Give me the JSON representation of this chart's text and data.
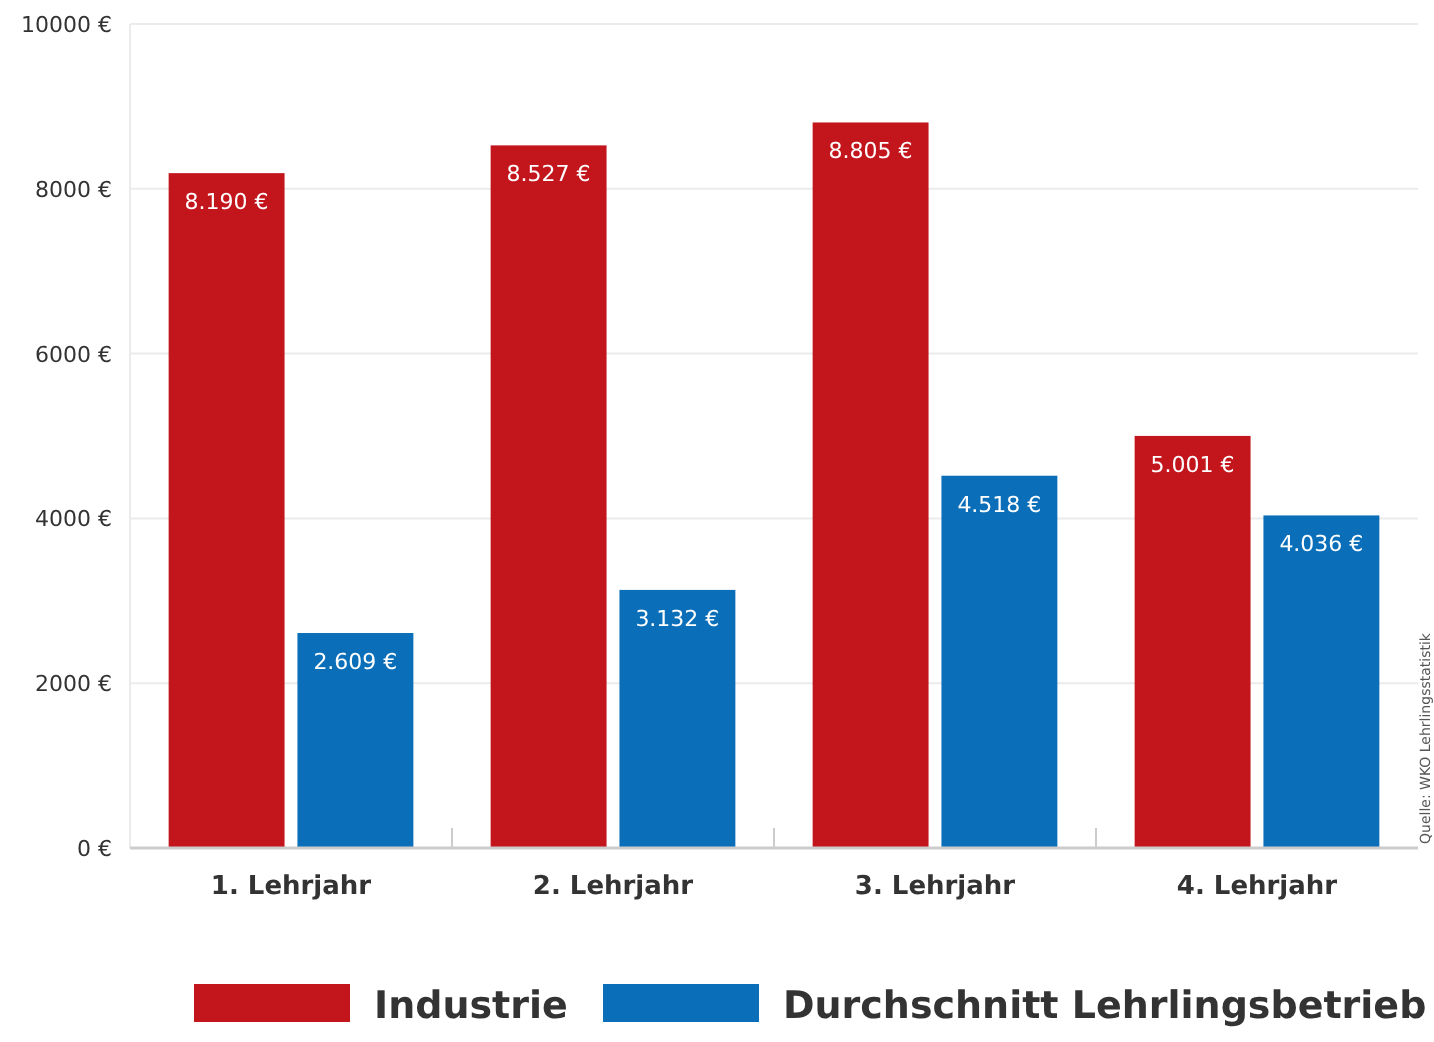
{
  "chart_data": {
    "type": "bar",
    "categories": [
      "1. Lehrjahr",
      "2. Lehrjahr",
      "3. Lehrjahr",
      "4. Lehrjahr"
    ],
    "series": [
      {
        "name": "Industrie",
        "color": "#c3151c",
        "values": [
          8190,
          8527,
          8805,
          5001
        ],
        "value_labels": [
          "8.190 €",
          "8.527 €",
          "8.805 €",
          "5.001 €"
        ]
      },
      {
        "name": "Durchschnitt Lehrlingsbetrieb",
        "color": "#0a6eb9",
        "values": [
          2609,
          3132,
          4518,
          4036
        ],
        "value_labels": [
          "2.609 €",
          "3.132 €",
          "4.518 €",
          "4.036 €"
        ]
      }
    ],
    "ylim": [
      0,
      10000
    ],
    "yticks": [
      {
        "value": 0,
        "label": "0 €"
      },
      {
        "value": 2000,
        "label": "2000 €"
      },
      {
        "value": 4000,
        "label": "4000 €"
      },
      {
        "value": 6000,
        "label": "6000 €"
      },
      {
        "value": 8000,
        "label": "8000 €"
      },
      {
        "value": 10000,
        "label": "10000 €"
      }
    ],
    "grid": "y",
    "legend": "bottom",
    "annotations": [
      "Quelle: WKO Lehrlingsstatistik"
    ]
  }
}
